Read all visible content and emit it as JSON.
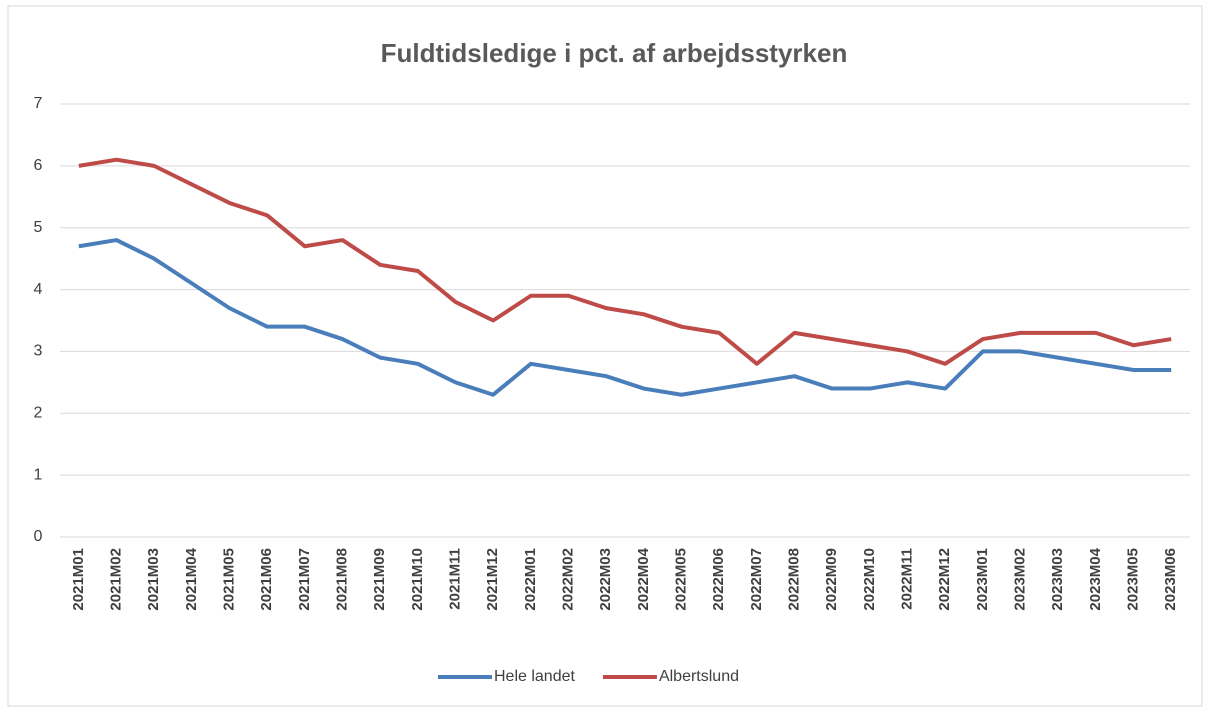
{
  "chart_data": {
    "type": "line",
    "title": "Fuldtidsledige i pct. af arbejdsstyrken",
    "categories": [
      "2021M01",
      "2021M02",
      "2021M03",
      "2021M04",
      "2021M05",
      "2021M06",
      "2021M07",
      "2021M08",
      "2021M09",
      "2021M10",
      "2021M11",
      "2021M12",
      "2022M01",
      "2022M02",
      "2022M03",
      "2022M04",
      "2022M05",
      "2022M06",
      "2022M07",
      "2022M08",
      "2022M09",
      "2022M10",
      "2022M11",
      "2022M12",
      "2023M01",
      "2023M02",
      "2023M03",
      "2023M04",
      "2023M05",
      "2023M06"
    ],
    "series": [
      {
        "name": "Hele landet",
        "color": "#4a7ebb",
        "values": [
          4.7,
          4.8,
          4.5,
          4.1,
          3.7,
          3.4,
          3.4,
          3.2,
          2.9,
          2.8,
          2.5,
          2.3,
          2.8,
          2.7,
          2.6,
          2.4,
          2.3,
          2.4,
          2.5,
          2.6,
          2.4,
          2.4,
          2.5,
          2.4,
          3.0,
          3.0,
          2.9,
          2.8,
          2.7,
          2.7
        ]
      },
      {
        "name": "Albertslund",
        "color": "#be4b48",
        "values": [
          6.0,
          6.1,
          6.0,
          5.7,
          5.4,
          5.2,
          4.7,
          4.8,
          4.4,
          4.3,
          3.8,
          3.5,
          3.9,
          3.9,
          3.7,
          3.6,
          3.4,
          3.3,
          2.8,
          3.3,
          3.2,
          3.1,
          3.0,
          2.8,
          3.2,
          3.3,
          3.3,
          3.3,
          3.1,
          3.2
        ]
      }
    ],
    "ylim": [
      0,
      7
    ],
    "yticks": [
      0,
      1,
      2,
      3,
      4,
      5,
      6,
      7
    ],
    "grid": true,
    "legend": "bottom"
  }
}
